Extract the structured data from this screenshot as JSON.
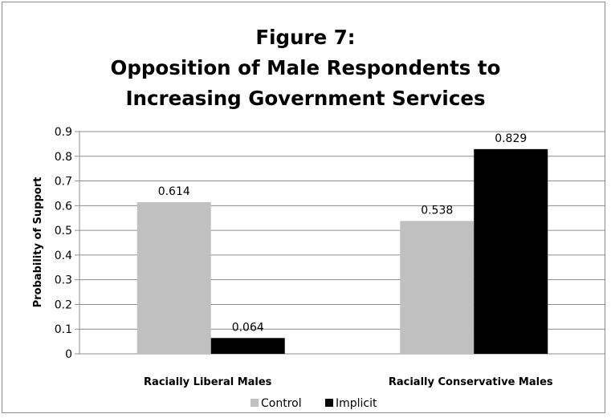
{
  "chart_data": {
    "type": "bar",
    "title_lines": [
      "Figure 7:",
      "Opposition of Male Respondents to",
      "Increasing Government Services"
    ],
    "categories": [
      "Racially Liberal Males",
      "Racially Conservative Males"
    ],
    "series": [
      {
        "name": "Control",
        "values": [
          0.614,
          0.538
        ],
        "labels": [
          "0.614",
          "0.538"
        ],
        "color": "#c0c0c0"
      },
      {
        "name": "Implicit",
        "values": [
          0.064,
          0.829
        ],
        "labels": [
          "0.064",
          "0.829"
        ],
        "color": "#000000"
      }
    ],
    "xlabel": "",
    "ylabel": "Probability of Support",
    "ylim": [
      0,
      0.9
    ],
    "yticks": [
      "0",
      "0.1",
      "0.2",
      "0.3",
      "0.4",
      "0.5",
      "0.6",
      "0.7",
      "0.8",
      "0.9"
    ],
    "grid": true,
    "legend_position": "bottom"
  }
}
